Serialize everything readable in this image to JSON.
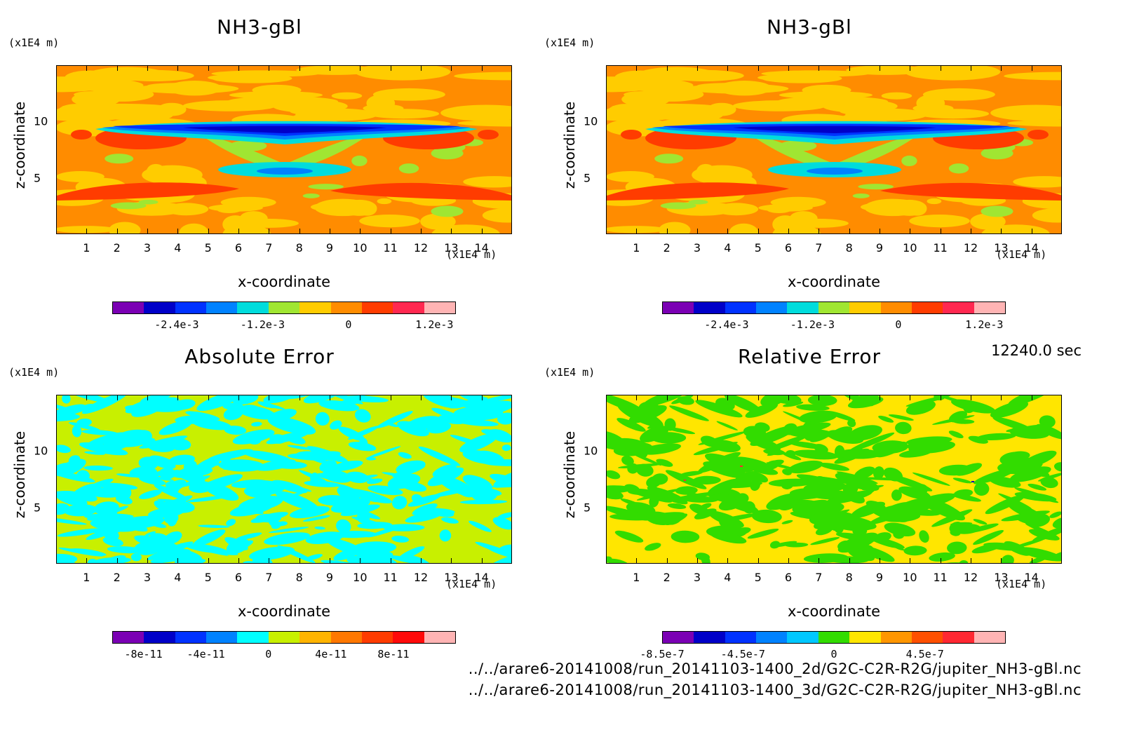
{
  "time_label": "12240.0 sec",
  "files": [
    "../../arare6-20141008/run_20141103-1400_2d/G2C-C2R-R2G/jupiter_NH3-gBl.nc",
    "../../arare6-20141008/run_20141103-1400_3d/G2C-C2R-R2G/jupiter_NH3-gBl.nc"
  ],
  "chart_data": [
    {
      "type": "heatmap",
      "title": "NH3-gBl",
      "xlabel": "x-coordinate",
      "ylabel": "z-coordinate",
      "x_unit": "(x1E4 m)",
      "y_unit": "(x1E4 m)",
      "xlim": [
        0,
        15
      ],
      "ylim": [
        0,
        15
      ],
      "x_ticks": [
        "1",
        "2",
        "3",
        "4",
        "5",
        "6",
        "7",
        "8",
        "9",
        "10",
        "11",
        "12",
        "13",
        "14"
      ],
      "y_ticks": [
        "5",
        "10"
      ],
      "colorbar_colors": [
        "#7b00b4",
        "#0000c8",
        "#0032ff",
        "#0082ff",
        "#00dcdc",
        "#a0e632",
        "#ffcc00",
        "#ff8c00",
        "#ff3c00",
        "#ff2850",
        "#ffb4b4"
      ],
      "colorbar_labels": [
        "-2.4e-3",
        "-1.2e-3",
        "0",
        "1.2e-3"
      ],
      "colorbar_label_values": [
        -0.0024,
        -0.0012,
        0,
        0.0012
      ],
      "colorbar_range": [
        -0.0033,
        0.0015
      ]
    },
    {
      "type": "heatmap",
      "title": "NH3-gBl",
      "xlabel": "x-coordinate",
      "ylabel": "z-coordinate",
      "x_unit": "(x1E4 m)",
      "y_unit": "(x1E4 m)",
      "xlim": [
        0,
        15
      ],
      "ylim": [
        0,
        15
      ],
      "x_ticks": [
        "1",
        "2",
        "3",
        "4",
        "5",
        "6",
        "7",
        "8",
        "9",
        "10",
        "11",
        "12",
        "13",
        "14"
      ],
      "y_ticks": [
        "5",
        "10"
      ],
      "colorbar_colors": [
        "#7b00b4",
        "#0000c8",
        "#0032ff",
        "#0082ff",
        "#00dcdc",
        "#a0e632",
        "#ffcc00",
        "#ff8c00",
        "#ff3c00",
        "#ff2850",
        "#ffb4b4"
      ],
      "colorbar_labels": [
        "-2.4e-3",
        "-1.2e-3",
        "0",
        "1.2e-3"
      ],
      "colorbar_label_values": [
        -0.0024,
        -0.0012,
        0,
        0.0012
      ],
      "colorbar_range": [
        -0.0033,
        0.0015
      ]
    },
    {
      "type": "heatmap",
      "title": "Absolute Error",
      "xlabel": "x-coordinate",
      "ylabel": "z-coordinate",
      "x_unit": "(x1E4 m)",
      "y_unit": "(x1E4 m)",
      "xlim": [
        0,
        15
      ],
      "ylim": [
        0,
        15
      ],
      "x_ticks": [
        "1",
        "2",
        "3",
        "4",
        "5",
        "6",
        "7",
        "8",
        "9",
        "10",
        "11",
        "12",
        "13",
        "14"
      ],
      "y_ticks": [
        "5",
        "10"
      ],
      "colorbar_colors": [
        "#7b00b4",
        "#0000c8",
        "#0032ff",
        "#0082ff",
        "#00ffff",
        "#c8f000",
        "#ffb400",
        "#ff7800",
        "#ff3c00",
        "#ff0a0a",
        "#ffb4b4"
      ],
      "colorbar_labels": [
        "-8e-11",
        "-4e-11",
        "0",
        "4e-11",
        "8e-11"
      ],
      "colorbar_label_values": [
        -8e-11,
        -4e-11,
        0,
        4e-11,
        8e-11
      ],
      "colorbar_range": [
        -1e-10,
        1.2e-10
      ]
    },
    {
      "type": "heatmap",
      "title": "Relative Error",
      "xlabel": "x-coordinate",
      "ylabel": "z-coordinate",
      "x_unit": "(x1E4 m)",
      "y_unit": "(x1E4 m)",
      "xlim": [
        0,
        15
      ],
      "ylim": [
        0,
        15
      ],
      "x_ticks": [
        "1",
        "2",
        "3",
        "4",
        "5",
        "6",
        "7",
        "8",
        "9",
        "10",
        "11",
        "12",
        "13",
        "14"
      ],
      "y_ticks": [
        "5",
        "10"
      ],
      "colorbar_colors": [
        "#7b00b4",
        "#0000c8",
        "#0032ff",
        "#0082ff",
        "#00c8ff",
        "#32dc00",
        "#ffe600",
        "#ff9600",
        "#ff5000",
        "#ff2832",
        "#ffb4b4"
      ],
      "colorbar_labels": [
        "-8.5e-7",
        "-4.5e-7",
        "0",
        "4.5e-7"
      ],
      "colorbar_label_values": [
        -8.5e-07,
        -4.5e-07,
        0,
        4.5e-07
      ],
      "colorbar_range": [
        -8.5e-07,
        8.5e-07
      ]
    }
  ]
}
